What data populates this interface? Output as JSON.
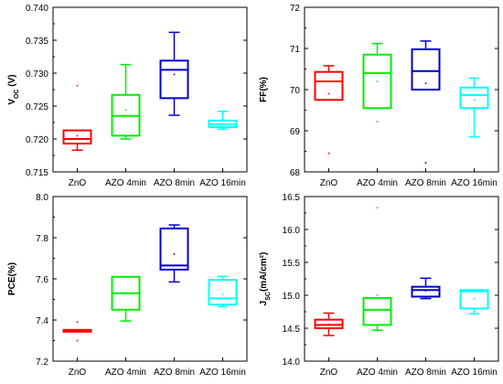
{
  "chart_data": [
    {
      "type": "box",
      "id": "voc",
      "ylabel_main": "V",
      "ylabel_sub": "OC",
      "ylabel_unit": " (V)",
      "ylim": [
        0.715,
        0.74
      ],
      "yticks": [
        "0.715",
        "0.720",
        "0.725",
        "0.730",
        "0.735",
        "0.740"
      ],
      "categories": [
        "ZnO",
        "AZO 4min",
        "AZO 8min",
        "AZO 16min"
      ],
      "colors": [
        "#ff0000",
        "#00ee00",
        "#0000cc",
        "#00ffff"
      ],
      "boxes": [
        {
          "whisker_low": 0.7183,
          "q1": 0.7193,
          "median": 0.72,
          "q3": 0.7213,
          "whisker_high": 0.7213,
          "mean": 0.7205,
          "outliers": [
            0.7281
          ]
        },
        {
          "whisker_low": 0.72,
          "q1": 0.7205,
          "median": 0.7235,
          "q3": 0.7267,
          "whisker_high": 0.7313,
          "mean": 0.7244,
          "outliers": []
        },
        {
          "whisker_low": 0.7236,
          "q1": 0.7262,
          "median": 0.7305,
          "q3": 0.7319,
          "whisker_high": 0.7362,
          "mean": 0.7298,
          "outliers": []
        },
        {
          "whisker_low": 0.7215,
          "q1": 0.7218,
          "median": 0.7222,
          "q3": 0.7228,
          "whisker_high": 0.7242,
          "mean": 0.7223,
          "outliers": []
        }
      ]
    },
    {
      "type": "box",
      "id": "ff",
      "ylabel_main": "FF(%)",
      "ylabel_sub": "",
      "ylabel_unit": "",
      "ylim": [
        68,
        72
      ],
      "yticks": [
        "68",
        "69",
        "70",
        "71",
        "72"
      ],
      "categories": [
        "ZnO",
        "AZO 4min",
        "AZO 8min",
        "AZO 16min"
      ],
      "colors": [
        "#ff0000",
        "#00ee00",
        "#0000cc",
        "#00ffff"
      ],
      "boxes": [
        {
          "whisker_low": 69.75,
          "q1": 69.75,
          "median": 70.2,
          "q3": 70.43,
          "whisker_high": 70.58,
          "mean": 69.9,
          "outliers": [
            68.45
          ]
        },
        {
          "whisker_low": 69.55,
          "q1": 69.55,
          "median": 70.4,
          "q3": 70.85,
          "whisker_high": 71.12,
          "mean": 70.2,
          "outliers": [
            69.22
          ]
        },
        {
          "whisker_low": 70.0,
          "q1": 70.0,
          "median": 70.45,
          "q3": 70.98,
          "whisker_high": 71.18,
          "mean": 70.15,
          "outliers": [
            68.22
          ]
        },
        {
          "whisker_low": 68.85,
          "q1": 69.55,
          "median": 69.87,
          "q3": 70.05,
          "whisker_high": 70.28,
          "mean": 69.75,
          "outliers": []
        }
      ]
    },
    {
      "type": "box",
      "id": "pce",
      "ylabel_main": "PCE(%)",
      "ylabel_sub": "",
      "ylabel_unit": "",
      "ylim": [
        7.2,
        8.0
      ],
      "yticks": [
        "7.2",
        "7.4",
        "7.6",
        "7.8",
        "8.0"
      ],
      "categories": [
        "ZnO",
        "AZO 4min",
        "AZO 8min",
        "AZO 16min"
      ],
      "colors": [
        "#ff0000",
        "#00ee00",
        "#0000cc",
        "#00ffff"
      ],
      "boxes": [
        {
          "whisker_low": 7.343,
          "q1": 7.343,
          "median": 7.348,
          "q3": 7.352,
          "whisker_high": 7.352,
          "mean": 7.348,
          "outliers": [
            7.39,
            7.3
          ]
        },
        {
          "whisker_low": 7.395,
          "q1": 7.45,
          "median": 7.53,
          "q3": 7.61,
          "whisker_high": 7.61,
          "mean": 7.53,
          "outliers": []
        },
        {
          "whisker_low": 7.585,
          "q1": 7.645,
          "median": 7.665,
          "q3": 7.845,
          "whisker_high": 7.862,
          "mean": 7.72,
          "outliers": []
        },
        {
          "whisker_low": 7.465,
          "q1": 7.475,
          "median": 7.505,
          "q3": 7.595,
          "whisker_high": 7.612,
          "mean": 7.525,
          "outliers": []
        }
      ]
    },
    {
      "type": "box",
      "id": "jsc",
      "ylabel_main": "J",
      "ylabel_sub": "SC",
      "ylabel_unit": "(mA/cm²)",
      "ylim": [
        14.0,
        16.5
      ],
      "yticks": [
        "14.0",
        "14.5",
        "15.0",
        "15.5",
        "16.0",
        "16.5"
      ],
      "categories": [
        "ZnO",
        "AZO 4min",
        "AZO 8min",
        "AZO 16min"
      ],
      "colors": [
        "#ff0000",
        "#00ee00",
        "#0000cc",
        "#00ffff"
      ],
      "boxes": [
        {
          "whisker_low": 14.39,
          "q1": 14.5,
          "median": 14.55,
          "q3": 14.63,
          "whisker_high": 14.73,
          "mean": 14.56,
          "outliers": []
        },
        {
          "whisker_low": 14.47,
          "q1": 14.55,
          "median": 14.78,
          "q3": 14.96,
          "whisker_high": 14.96,
          "mean": 15.0,
          "outliers": [
            16.33
          ]
        },
        {
          "whisker_low": 14.95,
          "q1": 14.98,
          "median": 15.08,
          "q3": 15.13,
          "whisker_high": 15.26,
          "mean": 15.07,
          "outliers": []
        },
        {
          "whisker_low": 14.72,
          "q1": 14.8,
          "median": 15.06,
          "q3": 15.08,
          "whisker_high": 15.08,
          "mean": 14.95,
          "outliers": []
        }
      ]
    }
  ]
}
